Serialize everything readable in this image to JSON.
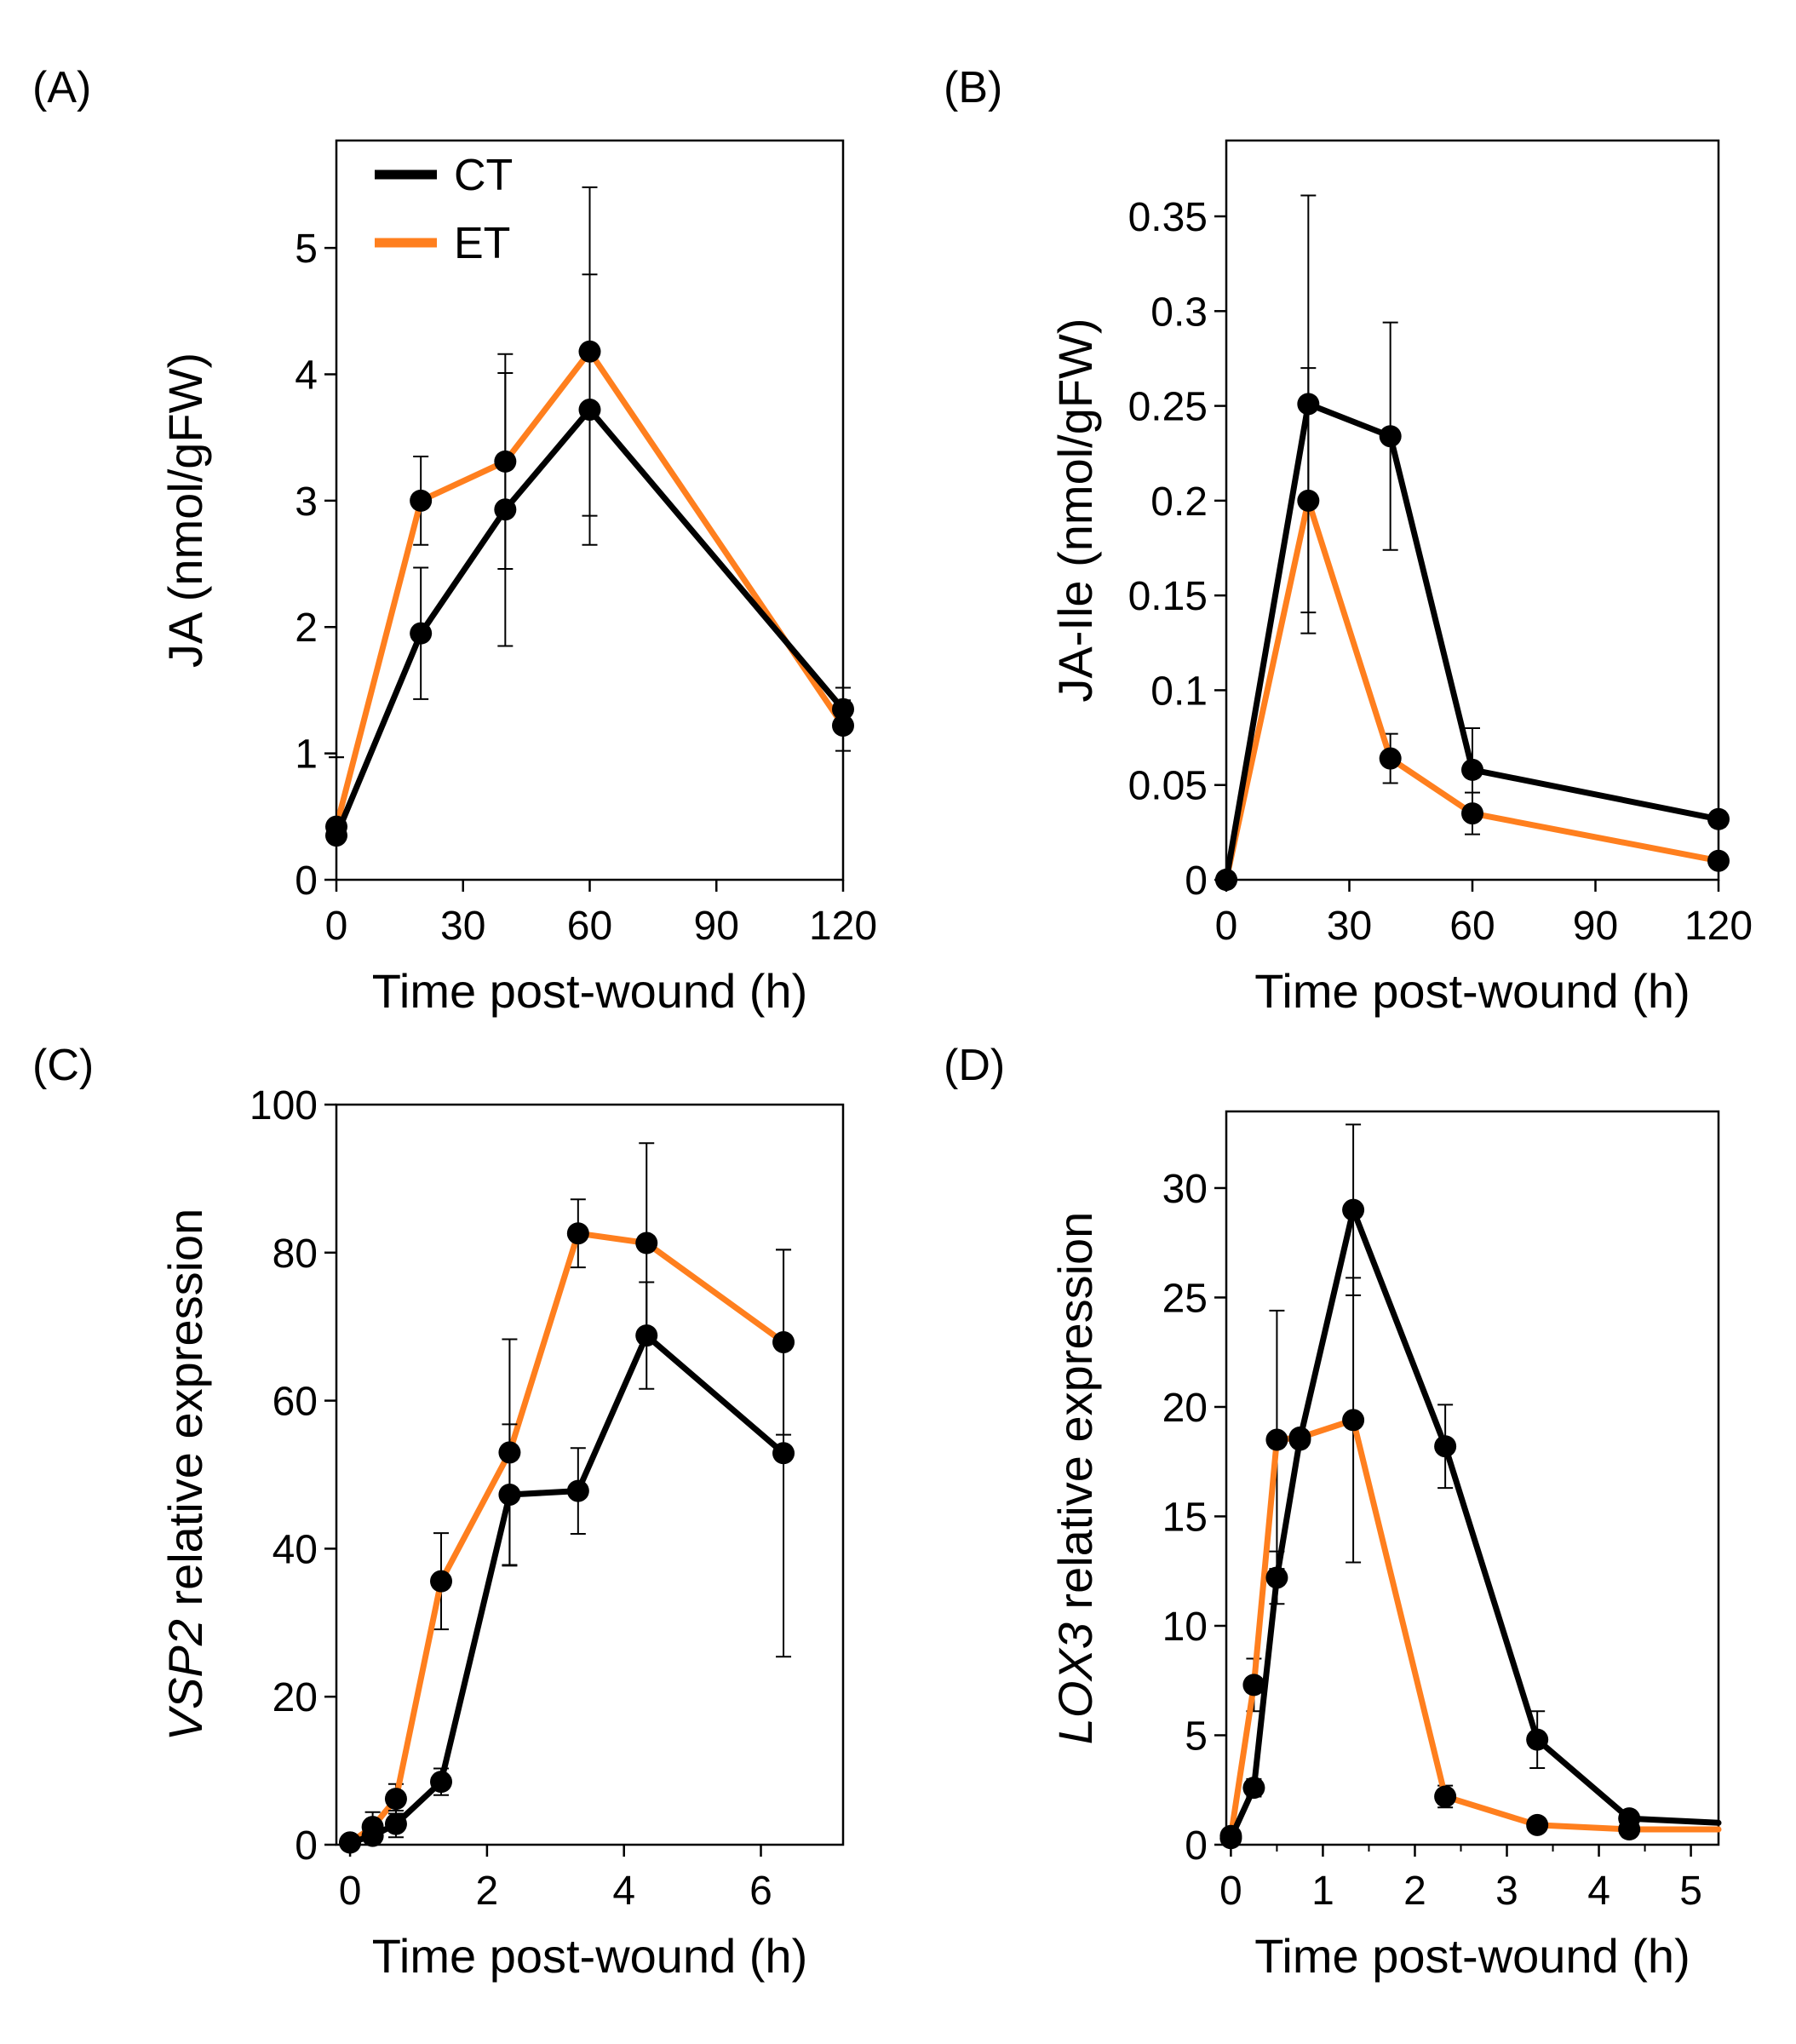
{
  "colors": {
    "CT": "#000000",
    "ET": "#ff7f1e"
  },
  "legend": [
    {
      "key": "CT",
      "label": "CT"
    },
    {
      "key": "ET",
      "label": "ET"
    }
  ],
  "chart_data": [
    {
      "panel": "(A)",
      "type": "line",
      "xlabel": "Time post-wound (h)",
      "ylabel": [
        {
          "text": "JA  (nmol/gFW)",
          "italic": false
        }
      ],
      "xlim": [
        0,
        120
      ],
      "ylim": [
        0,
        5.85
      ],
      "xticks": [
        0,
        30,
        60,
        90,
        120
      ],
      "xtick_labels": [
        "0",
        "30",
        "60",
        "90",
        "120"
      ],
      "yticks": [
        0,
        1,
        2,
        3,
        4,
        5
      ],
      "ytick_labels": [
        "0",
        "1",
        "2",
        "3",
        "4",
        "5"
      ],
      "legend_position": "top-left",
      "series": [
        {
          "name": "CT",
          "x": [
            0,
            20,
            40,
            60,
            120
          ],
          "y": [
            0.35,
            1.95,
            2.93,
            3.72,
            1.35
          ],
          "err": [
            0.62,
            0.52,
            1.08,
            1.07,
            0.17
          ]
        },
        {
          "name": "ET",
          "x": [
            0,
            20,
            40,
            60,
            120
          ],
          "y": [
            0.42,
            3.0,
            3.31,
            4.18,
            1.22
          ],
          "err": [
            0.55,
            0.35,
            0.85,
            1.3,
            0.2
          ]
        }
      ]
    },
    {
      "panel": "(B)",
      "type": "line",
      "xlabel": "Time post-wound (h)",
      "ylabel": [
        {
          "text": "JA-Ile  (nmol/gFW)",
          "italic": false
        }
      ],
      "xlim": [
        0,
        120
      ],
      "ylim": [
        0,
        0.39
      ],
      "xticks": [
        0,
        30,
        60,
        90,
        120
      ],
      "xtick_labels": [
        "0",
        "30",
        "60",
        "90",
        "120"
      ],
      "yticks": [
        0,
        0.05,
        0.1,
        0.15,
        0.2,
        0.25,
        0.3,
        0.35
      ],
      "ytick_labels": [
        "0",
        "0.05",
        "0.1",
        "0.15",
        "0.2",
        "0.25",
        "0.3",
        "0.35"
      ],
      "series": [
        {
          "name": "CT",
          "x": [
            0,
            20,
            40,
            60,
            120
          ],
          "y": [
            0.0,
            0.251,
            0.234,
            0.058,
            0.032
          ],
          "err": [
            0,
            0.11,
            0.06,
            0.022,
            0.004
          ]
        },
        {
          "name": "ET",
          "x": [
            0,
            20,
            40,
            60,
            120
          ],
          "y": [
            0.0,
            0.2,
            0.064,
            0.035,
            0.01
          ],
          "err": [
            0,
            0.07,
            0.013,
            0.011,
            0.003
          ]
        }
      ]
    },
    {
      "panel": "(C)",
      "type": "line",
      "xlabel": "Time post-wound (h)",
      "ylabel": [
        {
          "text": "VSP2",
          "italic": true
        },
        {
          "text": " relative expression",
          "italic": false
        }
      ],
      "xlim": [
        -0.2,
        7.2
      ],
      "ylim": [
        0,
        100
      ],
      "xticks": [
        0,
        2,
        4,
        6
      ],
      "xtick_labels": [
        "0",
        "2",
        "4",
        "6"
      ],
      "yticks": [
        0,
        20,
        40,
        60,
        80,
        100
      ],
      "ytick_labels": [
        "0",
        "20",
        "40",
        "60",
        "80",
        "100"
      ],
      "series": [
        {
          "name": "CT",
          "x": [
            0,
            0.33,
            0.67,
            1.33,
            2.33,
            3.33,
            4.33,
            6.33
          ],
          "y": [
            0.3,
            1.2,
            2.8,
            8.5,
            47.3,
            47.8,
            68.8,
            52.9
          ],
          "err": [
            0.3,
            0.8,
            1.8,
            1.8,
            9.5,
            5.8,
            7.2,
            27.5
          ]
        },
        {
          "name": "ET",
          "x": [
            0,
            0.33,
            0.67,
            1.33,
            2.33,
            3.33,
            4.33,
            6.33
          ],
          "y": [
            0.3,
            2.4,
            6.2,
            35.6,
            53.0,
            82.6,
            81.3,
            67.9
          ],
          "err": [
            0.3,
            2.0,
            2.0,
            6.5,
            15.3,
            4.6,
            13.5,
            12.5
          ]
        }
      ]
    },
    {
      "panel": "(D)",
      "type": "line",
      "xlabel": "Time post-wound (h)",
      "ylabel": [
        {
          "text": "LOX3",
          "italic": true
        },
        {
          "text": " relative expression",
          "italic": false
        }
      ],
      "xlim": [
        -0.05,
        5.3
      ],
      "ylim": [
        0,
        33.5
      ],
      "xticks": [
        0,
        1,
        2,
        3,
        4,
        5
      ],
      "xtick_labels": [
        "0",
        "1",
        "2",
        "3",
        "4",
        "5"
      ],
      "minor_xticks": [
        0.5,
        1.5,
        2.5,
        3.5,
        4.5
      ],
      "yticks": [
        0,
        5,
        10,
        15,
        20,
        25,
        30
      ],
      "ytick_labels": [
        "0",
        "5",
        "10",
        "15",
        "20",
        "25",
        "30"
      ],
      "series": [
        {
          "name": "CT",
          "x": [
            0,
            0.25,
            0.5,
            0.75,
            1.33,
            2.33,
            3.33,
            4.33,
            5.3
          ],
          "y": [
            0.3,
            2.6,
            12.2,
            18.5,
            29.0,
            18.2,
            4.8,
            1.2,
            1.0
          ],
          "err": [
            0.3,
            0.4,
            1.2,
            0,
            3.9,
            1.9,
            1.3,
            0.2,
            0
          ]
        },
        {
          "name": "ET",
          "x": [
            0,
            0.25,
            0.5,
            0.75,
            1.33,
            2.33,
            3.33,
            4.33,
            5.3
          ],
          "y": [
            0.4,
            7.3,
            18.5,
            18.6,
            19.4,
            2.2,
            0.9,
            0.7,
            0.7
          ],
          "err": [
            0.3,
            1.2,
            5.9,
            0,
            6.5,
            0.5,
            0.2,
            0.2,
            0
          ]
        }
      ]
    }
  ]
}
